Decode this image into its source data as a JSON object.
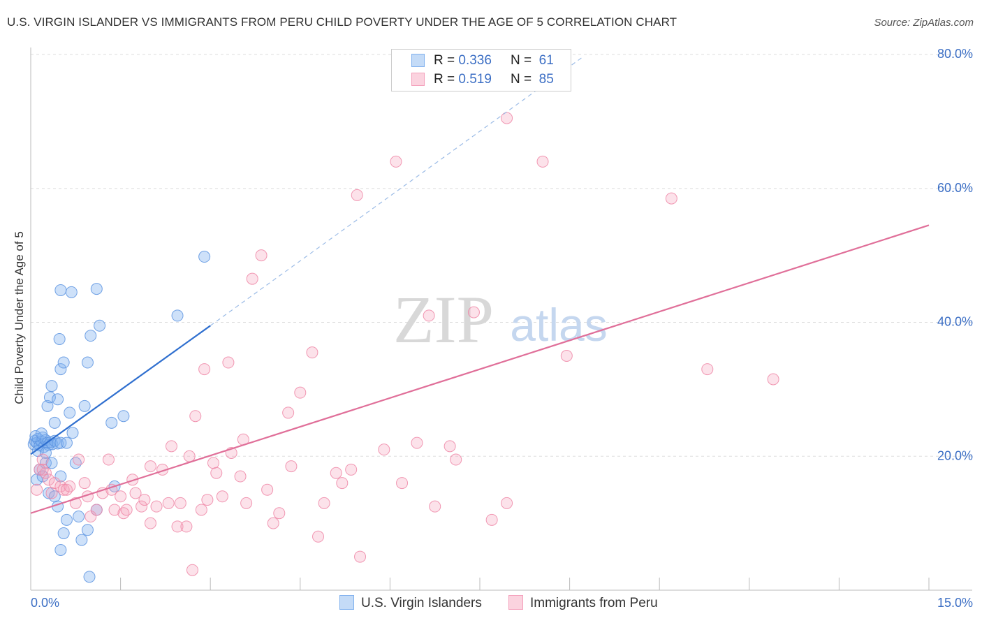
{
  "header": {
    "title": "U.S. VIRGIN ISLANDER VS IMMIGRANTS FROM PERU CHILD POVERTY UNDER THE AGE OF 5 CORRELATION CHART",
    "source": "Source: ZipAtlas.com"
  },
  "watermark": {
    "zip": "ZIP",
    "atlas": "atlas"
  },
  "correlation_box": {
    "rows": [
      {
        "r_label": "R =",
        "r_value": "0.336",
        "n_label": "N =",
        "n_value": "61",
        "color": "#7fb0ee"
      },
      {
        "r_label": "R =",
        "r_value": "0.519",
        "n_label": "N =",
        "n_value": "85",
        "color": "#f4a0bb"
      }
    ]
  },
  "legend": {
    "items": [
      {
        "label": "U.S. Virgin Islanders",
        "color": "#7fb0ee"
      },
      {
        "label": "Immigrants from Peru",
        "color": "#f4a0bb"
      }
    ]
  },
  "chart_data": {
    "type": "scatter",
    "title": "U.S. VIRGIN ISLANDER VS IMMIGRANTS FROM PERU CHILD POVERTY UNDER THE AGE OF 5 CORRELATION CHART",
    "xlabel": "",
    "ylabel": "Child Poverty Under the Age of 5",
    "xlim": [
      0,
      15
    ],
    "ylim": [
      0,
      80
    ],
    "x_tick_labels": [
      "0.0%",
      "15.0%"
    ],
    "y_ticks": [
      20,
      40,
      60,
      80
    ],
    "y_tick_labels": [
      "20.0%",
      "40.0%",
      "60.0%",
      "80.0%"
    ],
    "grid": true,
    "series": [
      {
        "name": "U.S. Virgin Islanders",
        "color": "#5b93e0",
        "points": [
          [
            0.05,
            21.8
          ],
          [
            0.07,
            22.3
          ],
          [
            0.1,
            22.0
          ],
          [
            0.12,
            22.6
          ],
          [
            0.15,
            21.6
          ],
          [
            0.18,
            22.2
          ],
          [
            0.2,
            22.8
          ],
          [
            0.22,
            21.4
          ],
          [
            0.25,
            22.4
          ],
          [
            0.28,
            22.0
          ],
          [
            0.3,
            21.7
          ],
          [
            0.33,
            22.1
          ],
          [
            0.36,
            21.8
          ],
          [
            0.4,
            22.3
          ],
          [
            0.45,
            21.9
          ],
          [
            0.5,
            22.0
          ],
          [
            0.08,
            23.0
          ],
          [
            0.12,
            20.8
          ],
          [
            0.18,
            23.4
          ],
          [
            0.25,
            20.5
          ],
          [
            0.1,
            16.5
          ],
          [
            0.15,
            18.0
          ],
          [
            0.2,
            17.0
          ],
          [
            0.25,
            19.0
          ],
          [
            0.3,
            14.5
          ],
          [
            0.35,
            19.0
          ],
          [
            0.4,
            14.0
          ],
          [
            0.45,
            12.5
          ],
          [
            0.5,
            17.0
          ],
          [
            0.55,
            8.5
          ],
          [
            0.6,
            10.5
          ],
          [
            0.65,
            26.5
          ],
          [
            0.7,
            23.5
          ],
          [
            0.75,
            19.0
          ],
          [
            0.8,
            11.0
          ],
          [
            0.85,
            7.5
          ],
          [
            0.9,
            27.5
          ],
          [
            0.95,
            9.0
          ],
          [
            1.1,
            12.0
          ],
          [
            1.35,
            25.0
          ],
          [
            1.4,
            15.5
          ],
          [
            1.55,
            26.0
          ],
          [
            0.28,
            27.5
          ],
          [
            0.32,
            28.8
          ],
          [
            0.35,
            30.5
          ],
          [
            0.4,
            25.0
          ],
          [
            0.45,
            28.5
          ],
          [
            0.5,
            33.0
          ],
          [
            0.55,
            34.0
          ],
          [
            0.48,
            37.5
          ],
          [
            0.5,
            44.8
          ],
          [
            0.68,
            44.5
          ],
          [
            1.0,
            38.0
          ],
          [
            1.1,
            45.0
          ],
          [
            1.15,
            39.5
          ],
          [
            0.95,
            34.0
          ],
          [
            2.45,
            41.0
          ],
          [
            2.9,
            49.8
          ],
          [
            0.6,
            22.0
          ],
          [
            0.98,
            2.0
          ],
          [
            0.5,
            6.0
          ]
        ],
        "trend": {
          "x": [
            0,
            3.0
          ],
          "y": [
            20.3,
            39.5
          ],
          "style": "solid"
        },
        "trend_extension": {
          "x": [
            3.0,
            9.2
          ],
          "y": [
            39.5,
            79.5
          ],
          "style": "dashed"
        }
      },
      {
        "name": "Immigrants from Peru",
        "color": "#ef86a6",
        "points": [
          [
            0.1,
            15.0
          ],
          [
            0.15,
            18.0
          ],
          [
            0.2,
            19.5
          ],
          [
            0.25,
            17.5
          ],
          [
            0.3,
            16.5
          ],
          [
            0.35,
            14.5
          ],
          [
            0.4,
            16.0
          ],
          [
            0.5,
            15.5
          ],
          [
            0.55,
            15.0
          ],
          [
            0.6,
            15.0
          ],
          [
            0.65,
            15.5
          ],
          [
            0.75,
            13.0
          ],
          [
            0.8,
            19.5
          ],
          [
            0.9,
            16.0
          ],
          [
            0.95,
            14.0
          ],
          [
            1.0,
            11.0
          ],
          [
            1.1,
            12.0
          ],
          [
            1.2,
            14.5
          ],
          [
            1.3,
            19.5
          ],
          [
            1.35,
            15.0
          ],
          [
            1.4,
            12.0
          ],
          [
            1.5,
            14.0
          ],
          [
            1.55,
            11.5
          ],
          [
            1.6,
            12.0
          ],
          [
            1.7,
            16.5
          ],
          [
            1.75,
            14.5
          ],
          [
            1.85,
            12.5
          ],
          [
            1.9,
            13.5
          ],
          [
            2.0,
            18.5
          ],
          [
            2.0,
            10.0
          ],
          [
            2.1,
            12.5
          ],
          [
            2.2,
            18.0
          ],
          [
            2.3,
            13.0
          ],
          [
            2.35,
            21.5
          ],
          [
            2.45,
            9.5
          ],
          [
            2.5,
            13.0
          ],
          [
            2.6,
            9.5
          ],
          [
            2.65,
            20.0
          ],
          [
            2.75,
            26.0
          ],
          [
            2.85,
            12.0
          ],
          [
            2.9,
            33.0
          ],
          [
            2.95,
            13.5
          ],
          [
            3.05,
            19.0
          ],
          [
            3.1,
            17.5
          ],
          [
            3.2,
            14.0
          ],
          [
            3.3,
            34.0
          ],
          [
            3.35,
            20.5
          ],
          [
            3.5,
            17.0
          ],
          [
            3.55,
            22.5
          ],
          [
            3.6,
            13.0
          ],
          [
            3.7,
            46.5
          ],
          [
            3.85,
            50.0
          ],
          [
            3.95,
            15.0
          ],
          [
            4.05,
            10.0
          ],
          [
            4.15,
            11.5
          ],
          [
            4.3,
            26.5
          ],
          [
            4.35,
            18.5
          ],
          [
            4.5,
            29.5
          ],
          [
            4.7,
            35.5
          ],
          [
            4.8,
            8.0
          ],
          [
            4.9,
            13.0
          ],
          [
            5.1,
            17.5
          ],
          [
            5.2,
            16.0
          ],
          [
            5.35,
            18.0
          ],
          [
            5.45,
            59.0
          ],
          [
            5.5,
            5.0
          ],
          [
            5.9,
            21.0
          ],
          [
            6.1,
            64.0
          ],
          [
            6.2,
            16.0
          ],
          [
            6.45,
            22.0
          ],
          [
            6.65,
            41.0
          ],
          [
            6.75,
            12.5
          ],
          [
            7.0,
            21.5
          ],
          [
            7.1,
            19.5
          ],
          [
            7.4,
            41.5
          ],
          [
            7.7,
            10.5
          ],
          [
            7.95,
            13.0
          ],
          [
            7.95,
            70.5
          ],
          [
            8.55,
            64.0
          ],
          [
            8.95,
            35.0
          ],
          [
            10.7,
            58.5
          ],
          [
            11.3,
            33.0
          ],
          [
            12.4,
            31.5
          ],
          [
            2.7,
            3.0
          ],
          [
            0.2,
            18.0
          ]
        ],
        "trend": {
          "x": [
            0,
            15.0
          ],
          "y": [
            11.5,
            54.5
          ],
          "style": "solid"
        }
      }
    ]
  }
}
